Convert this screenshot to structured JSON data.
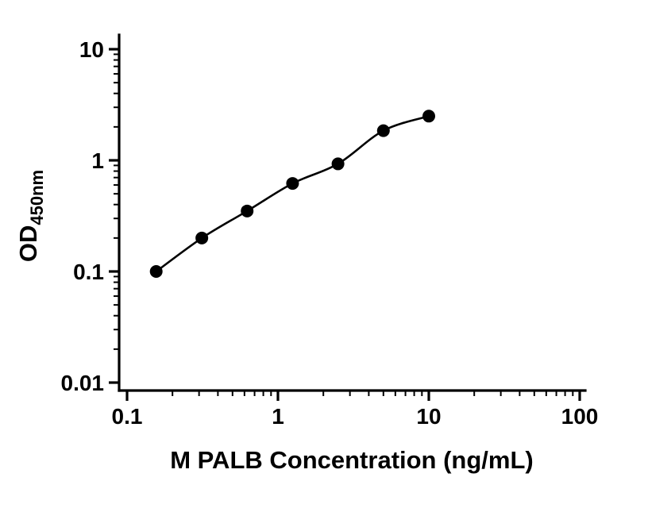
{
  "page": {
    "background": "#ffffff"
  },
  "chart_data": {
    "type": "scatter",
    "title": "",
    "xlabel": "M PALB Concentration (ng/mL)",
    "ylabel_main": "OD",
    "ylabel_sub": "450nm",
    "x_scale": "log",
    "y_scale": "log",
    "xlim": [
      0.1,
      100
    ],
    "ylim": [
      0.01,
      10
    ],
    "x_ticks": [
      0.1,
      1,
      10,
      100
    ],
    "x_tick_labels": [
      "0.1",
      "1",
      "10",
      "100"
    ],
    "y_ticks": [
      0.01,
      0.1,
      1,
      10
    ],
    "y_tick_labels": [
      "0.01",
      "0.1",
      "1",
      "10"
    ],
    "minor_log_ticks": true,
    "has_fit_curve": true,
    "points": [
      {
        "x": 0.156,
        "y": 0.1
      },
      {
        "x": 0.313,
        "y": 0.2
      },
      {
        "x": 0.625,
        "y": 0.35
      },
      {
        "x": 1.25,
        "y": 0.62
      },
      {
        "x": 2.5,
        "y": 0.93
      },
      {
        "x": 5.0,
        "y": 1.85
      },
      {
        "x": 10.0,
        "y": 2.5
      }
    ],
    "marker_color": "#000000",
    "line_color": "#000000",
    "axis_color": "#000000"
  }
}
